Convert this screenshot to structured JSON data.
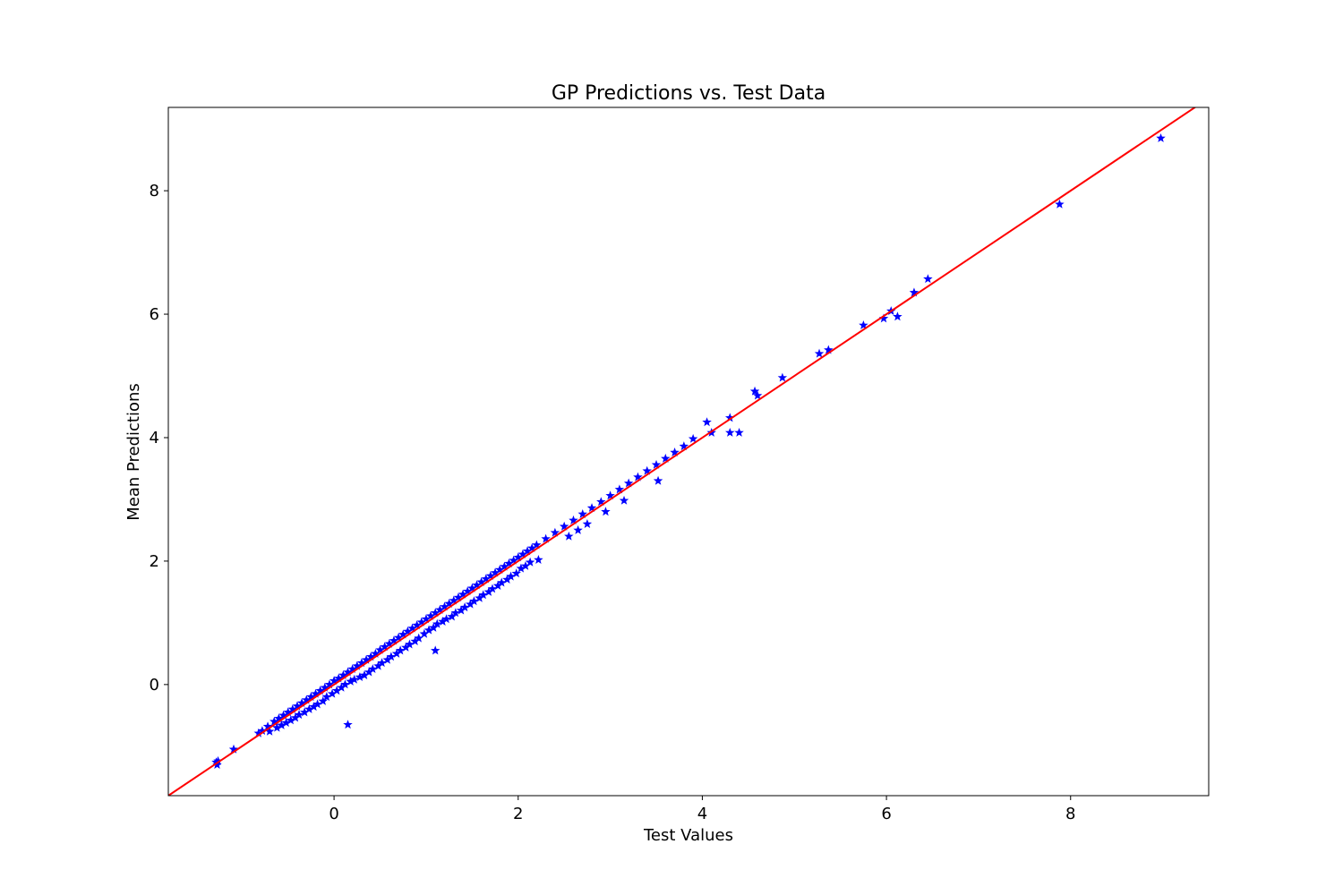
{
  "chart_data": {
    "type": "scatter",
    "title": "GP Predictions vs. Test Data",
    "xlabel": "Test Values",
    "ylabel": "Mean Predictions",
    "xlim": [
      -1.8,
      9.5
    ],
    "ylim": [
      -1.8,
      9.35
    ],
    "xticks": [
      0,
      2,
      4,
      6,
      8
    ],
    "yticks": [
      0,
      2,
      4,
      6,
      8
    ],
    "grid": false,
    "colors": {
      "points": "#0000ff",
      "reference_line": "#ff0000"
    },
    "marker": "star",
    "reference_line": {
      "type": "y=x",
      "from": [
        -1.8,
        -1.8
      ],
      "to": [
        9.5,
        9.5
      ]
    },
    "series": [
      {
        "points": [
          [
            -1.28,
            -1.26
          ],
          [
            -1.27,
            -1.3
          ],
          [
            -1.26,
            -1.24
          ],
          [
            -1.09,
            -1.05
          ],
          [
            -0.82,
            -0.79
          ],
          [
            -0.78,
            -0.75
          ],
          [
            -0.72,
            -0.68
          ],
          [
            -0.7,
            -0.76
          ],
          [
            -0.65,
            -0.6
          ],
          [
            -0.62,
            -0.7
          ],
          [
            -0.6,
            -0.55
          ],
          [
            -0.57,
            -0.66
          ],
          [
            -0.55,
            -0.5
          ],
          [
            -0.52,
            -0.62
          ],
          [
            -0.5,
            -0.45
          ],
          [
            -0.47,
            -0.58
          ],
          [
            -0.45,
            -0.4
          ],
          [
            -0.42,
            -0.54
          ],
          [
            -0.4,
            -0.35
          ],
          [
            -0.38,
            -0.49
          ],
          [
            -0.35,
            -0.3
          ],
          [
            -0.32,
            -0.45
          ],
          [
            -0.3,
            -0.25
          ],
          [
            -0.27,
            -0.4
          ],
          [
            -0.25,
            -0.2
          ],
          [
            -0.22,
            -0.36
          ],
          [
            -0.2,
            -0.15
          ],
          [
            -0.18,
            -0.32
          ],
          [
            -0.15,
            -0.1
          ],
          [
            -0.12,
            -0.27
          ],
          [
            -0.1,
            -0.05
          ],
          [
            -0.08,
            -0.2
          ],
          [
            -0.05,
            0.0
          ],
          [
            -0.02,
            -0.15
          ],
          [
            0.0,
            0.06
          ],
          [
            0.03,
            -0.1
          ],
          [
            0.05,
            0.1
          ],
          [
            0.08,
            -0.05
          ],
          [
            0.1,
            0.15
          ],
          [
            0.12,
            0.0
          ],
          [
            0.15,
            0.2
          ],
          [
            0.15,
            -0.65
          ],
          [
            0.18,
            0.05
          ],
          [
            0.2,
            0.25
          ],
          [
            0.22,
            0.08
          ],
          [
            0.25,
            0.3
          ],
          [
            0.28,
            0.12
          ],
          [
            0.3,
            0.35
          ],
          [
            0.33,
            0.15
          ],
          [
            0.35,
            0.4
          ],
          [
            0.38,
            0.2
          ],
          [
            0.4,
            0.45
          ],
          [
            0.42,
            0.25
          ],
          [
            0.45,
            0.5
          ],
          [
            0.48,
            0.3
          ],
          [
            0.5,
            0.56
          ],
          [
            0.52,
            0.35
          ],
          [
            0.55,
            0.61
          ],
          [
            0.58,
            0.4
          ],
          [
            0.6,
            0.66
          ],
          [
            0.62,
            0.45
          ],
          [
            0.65,
            0.71
          ],
          [
            0.68,
            0.5
          ],
          [
            0.7,
            0.76
          ],
          [
            0.72,
            0.55
          ],
          [
            0.75,
            0.81
          ],
          [
            0.78,
            0.6
          ],
          [
            0.8,
            0.86
          ],
          [
            0.82,
            0.65
          ],
          [
            0.85,
            0.91
          ],
          [
            0.88,
            0.7
          ],
          [
            0.9,
            0.96
          ],
          [
            0.92,
            0.75
          ],
          [
            0.95,
            1.01
          ],
          [
            0.98,
            0.82
          ],
          [
            1.0,
            1.06
          ],
          [
            1.03,
            0.88
          ],
          [
            1.05,
            1.11
          ],
          [
            1.08,
            0.92
          ],
          [
            1.1,
            1.16
          ],
          [
            1.1,
            0.55
          ],
          [
            1.12,
            0.98
          ],
          [
            1.15,
            1.21
          ],
          [
            1.18,
            1.02
          ],
          [
            1.2,
            1.26
          ],
          [
            1.22,
            1.06
          ],
          [
            1.25,
            1.31
          ],
          [
            1.28,
            1.1
          ],
          [
            1.3,
            1.36
          ],
          [
            1.32,
            1.16
          ],
          [
            1.35,
            1.41
          ],
          [
            1.38,
            1.2
          ],
          [
            1.4,
            1.46
          ],
          [
            1.42,
            1.25
          ],
          [
            1.45,
            1.51
          ],
          [
            1.48,
            1.3
          ],
          [
            1.5,
            1.56
          ],
          [
            1.52,
            1.35
          ],
          [
            1.55,
            1.61
          ],
          [
            1.58,
            1.4
          ],
          [
            1.6,
            1.66
          ],
          [
            1.62,
            1.45
          ],
          [
            1.65,
            1.71
          ],
          [
            1.68,
            1.5
          ],
          [
            1.7,
            1.76
          ],
          [
            1.72,
            1.55
          ],
          [
            1.75,
            1.81
          ],
          [
            1.78,
            1.6
          ],
          [
            1.8,
            1.86
          ],
          [
            1.82,
            1.65
          ],
          [
            1.85,
            1.91
          ],
          [
            1.88,
            1.7
          ],
          [
            1.9,
            1.96
          ],
          [
            1.92,
            1.75
          ],
          [
            1.95,
            2.01
          ],
          [
            1.98,
            1.8
          ],
          [
            2.0,
            2.06
          ],
          [
            2.03,
            1.88
          ],
          [
            2.05,
            2.11
          ],
          [
            2.08,
            1.92
          ],
          [
            2.1,
            2.16
          ],
          [
            2.13,
            1.98
          ],
          [
            2.15,
            2.21
          ],
          [
            2.2,
            2.26
          ],
          [
            2.22,
            2.02
          ],
          [
            2.3,
            2.36
          ],
          [
            2.4,
            2.46
          ],
          [
            2.5,
            2.56
          ],
          [
            2.55,
            2.4
          ],
          [
            2.6,
            2.66
          ],
          [
            2.65,
            2.5
          ],
          [
            2.7,
            2.76
          ],
          [
            2.75,
            2.6
          ],
          [
            2.8,
            2.86
          ],
          [
            2.9,
            2.96
          ],
          [
            2.95,
            2.8
          ],
          [
            3.0,
            3.06
          ],
          [
            3.1,
            3.16
          ],
          [
            3.15,
            2.98
          ],
          [
            3.2,
            3.26
          ],
          [
            3.3,
            3.36
          ],
          [
            3.4,
            3.46
          ],
          [
            3.5,
            3.56
          ],
          [
            3.52,
            3.3
          ],
          [
            3.6,
            3.66
          ],
          [
            3.7,
            3.76
          ],
          [
            3.8,
            3.86
          ],
          [
            3.9,
            3.98
          ],
          [
            4.05,
            4.25
          ],
          [
            4.1,
            4.08
          ],
          [
            4.3,
            4.32
          ],
          [
            4.3,
            4.08
          ],
          [
            4.4,
            4.08
          ],
          [
            4.57,
            4.75
          ],
          [
            4.6,
            4.68
          ],
          [
            4.87,
            4.97
          ],
          [
            5.27,
            5.36
          ],
          [
            5.37,
            5.42
          ],
          [
            5.75,
            5.82
          ],
          [
            5.97,
            5.93
          ],
          [
            6.05,
            6.05
          ],
          [
            6.12,
            5.96
          ],
          [
            6.3,
            6.35
          ],
          [
            6.45,
            6.57
          ],
          [
            7.88,
            7.78
          ],
          [
            8.98,
            8.85
          ]
        ]
      }
    ]
  }
}
